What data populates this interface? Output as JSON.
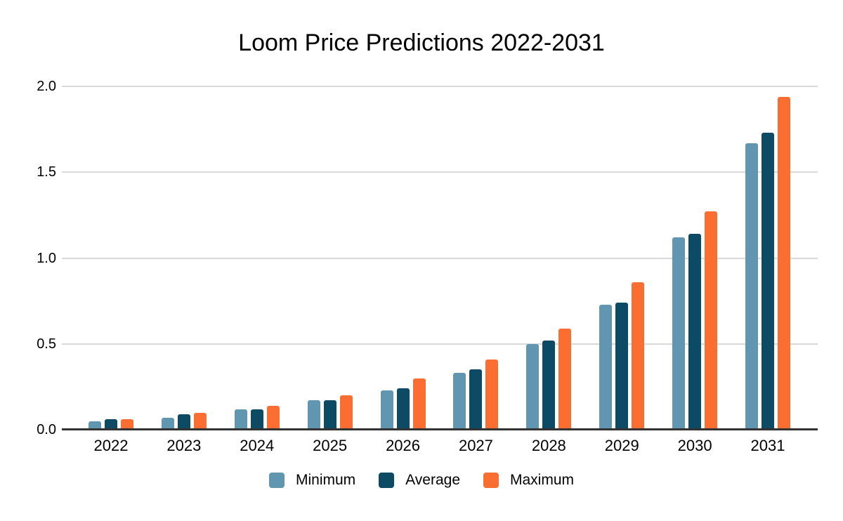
{
  "title": "Loom Price Predictions 2022-2031",
  "chart_data": {
    "type": "bar",
    "title": "Loom Price Predictions 2022-2031",
    "categories": [
      "2022",
      "2023",
      "2024",
      "2025",
      "2026",
      "2027",
      "2028",
      "2029",
      "2030",
      "2031"
    ],
    "series": [
      {
        "name": "Minimum",
        "color": "#6096af",
        "values": [
          0.05,
          0.07,
          0.12,
          0.17,
          0.23,
          0.33,
          0.5,
          0.73,
          1.12,
          1.67
        ]
      },
      {
        "name": "Average",
        "color": "#0d4a63",
        "values": [
          0.06,
          0.09,
          0.12,
          0.17,
          0.24,
          0.35,
          0.52,
          0.74,
          1.14,
          1.73
        ]
      },
      {
        "name": "Maximum",
        "color": "#fa6f31",
        "values": [
          0.06,
          0.1,
          0.14,
          0.2,
          0.3,
          0.41,
          0.59,
          0.86,
          1.27,
          1.94
        ]
      }
    ],
    "xlabel": "",
    "ylabel": "",
    "ylim": [
      0,
      2.0
    ],
    "yticks": [
      "0.0",
      "0.5",
      "1.0",
      "1.5",
      "2.0"
    ],
    "grid": true,
    "legend_position": "bottom",
    "colors": {
      "gridline": "#d9d9d9",
      "axis": "#333333",
      "text": "#000000",
      "background": "#ffffff"
    }
  }
}
